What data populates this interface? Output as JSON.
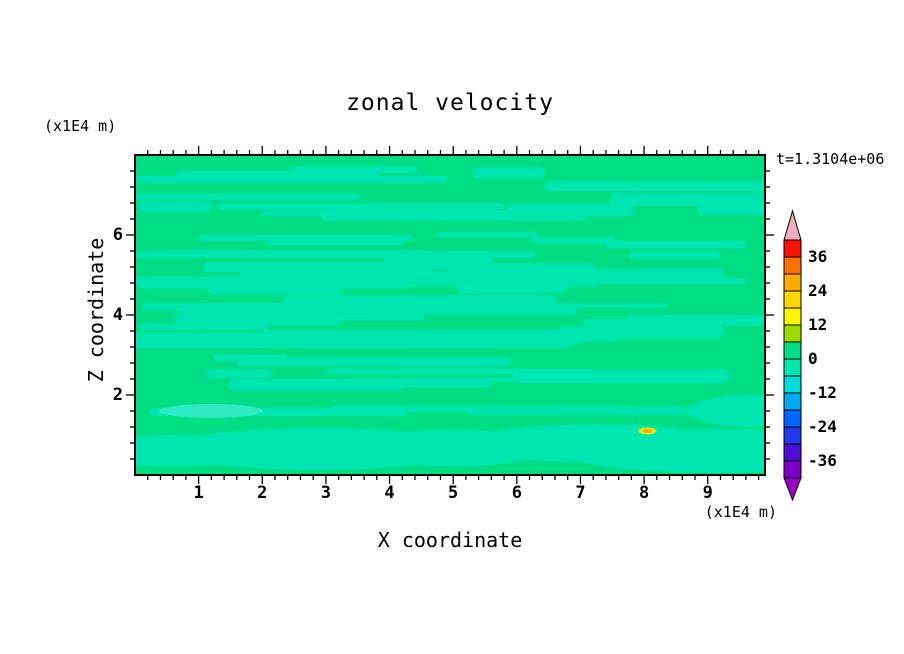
{
  "chart_data": {
    "type": "heatmap",
    "title": "zonal velocity",
    "xlabel": "X coordinate",
    "ylabel": "Z coordinate",
    "x_unit": "(x1E4 m)",
    "y_unit": "(x1E4 m)",
    "time_annotation": "t=1.3104e+06",
    "x_ticks": [
      1,
      2,
      3,
      4,
      5,
      6,
      7,
      8,
      9
    ],
    "y_ticks": [
      2,
      4,
      6
    ],
    "x_range": [
      0,
      9.9
    ],
    "y_range": [
      0,
      8
    ],
    "x_minor_step": 0.2,
    "y_minor_step": 0.4,
    "grid": false,
    "field_summary": "Zonal velocity is near zero over the whole domain: background lies in the 0..6 contour band (spring green) with many elongated horizontal streaks in the -6..0 band (pale green), larger pale patches along the bottom, a small cyan (-12..-6) patch near x=1.2 z=1.6, and a tiny positive anomaly (yellow/orange bands) near x=8.05 z=1.1.",
    "colorbar": {
      "tick_labels": [
        "36",
        "24",
        "12",
        "0",
        "-12",
        "-24",
        "-36"
      ],
      "bands": [
        {
          "min": 36,
          "max": 42,
          "color": "#F81400"
        },
        {
          "min": 30,
          "max": 36,
          "color": "#FF6E00"
        },
        {
          "min": 24,
          "max": 30,
          "color": "#FFAA00"
        },
        {
          "min": 18,
          "max": 24,
          "color": "#FFD700"
        },
        {
          "min": 12,
          "max": 18,
          "color": "#FBF500"
        },
        {
          "min": 6,
          "max": 12,
          "color": "#9BDC00"
        },
        {
          "min": 0,
          "max": 6,
          "color": "#00DE84"
        },
        {
          "min": -6,
          "max": 0,
          "color": "#00E6B0"
        },
        {
          "min": -12,
          "max": -6,
          "color": "#00DCDC"
        },
        {
          "min": -18,
          "max": -12,
          "color": "#00AAF5"
        },
        {
          "min": -24,
          "max": -18,
          "color": "#0066FF"
        },
        {
          "min": -30,
          "max": -24,
          "color": "#2238E8"
        },
        {
          "min": -36,
          "max": -30,
          "color": "#4B0ED2"
        },
        {
          "min": -42,
          "max": -36,
          "color": "#7A00C8"
        }
      ],
      "arrow_top_color": "#F0AEBC",
      "arrow_bottom_color": "#9A00C4"
    },
    "render_hints": {
      "seed": 42,
      "streak_count": 58,
      "extra_long_streaks": 14,
      "base_color": "#00DE84",
      "streak_color": "#00E6B0",
      "cyan_patch_color": "#2FE9C2",
      "anomaly_yellow": "#E8EA00",
      "anomaly_orange": "#FFAA00",
      "cyan_patch_pos": {
        "x": 1.2,
        "z": 1.6
      },
      "anomaly_pos": {
        "x": 8.05,
        "z": 1.1
      }
    }
  }
}
